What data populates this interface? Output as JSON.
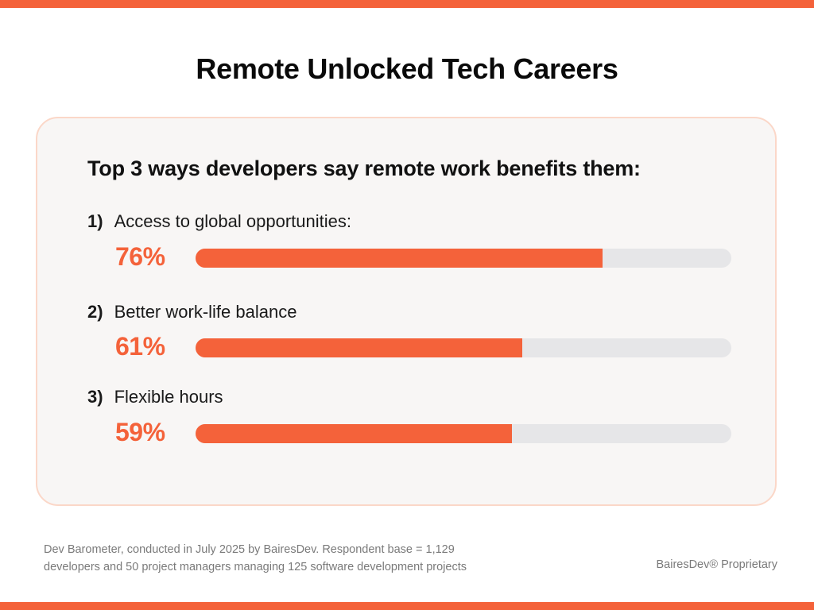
{
  "colors": {
    "accent": "#f4623a",
    "track": "#e6e6e8",
    "card_border": "#fbd7c8",
    "card_background": "#f8f6f5"
  },
  "header": {
    "title": "Remote Unlocked Tech Careers"
  },
  "chart_data": {
    "type": "bar",
    "orientation": "horizontal",
    "title": "Top 3 ways developers say remote work benefits them:",
    "unit": "%",
    "ylim": [
      0,
      100
    ],
    "categories": [
      "Access to global opportunities:",
      "Better work-life balance",
      "Flexible hours"
    ],
    "numbers": [
      "1)",
      "2)",
      "3)"
    ],
    "values": [
      76,
      61,
      59
    ],
    "value_labels": [
      "76%",
      "61%",
      "59%"
    ]
  },
  "footer": {
    "note_line1": "Dev Barometer, conducted in July 2025 by BairesDev. Respondent base = 1,129",
    "note_line2": "developers and 50 project managers managing 125 software development projects",
    "proprietary": "BairesDev® Proprietary"
  }
}
